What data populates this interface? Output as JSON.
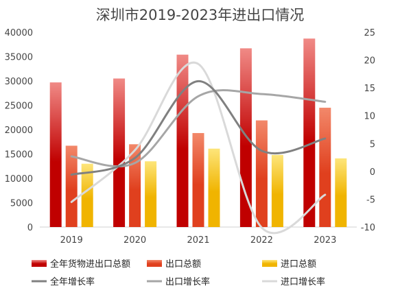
{
  "chart_data": {
    "type": "bar",
    "title": "深圳市2019-2023年进出口情况",
    "categories": [
      "2019",
      "2020",
      "2021",
      "2022",
      "2023"
    ],
    "y_left": {
      "min": 0,
      "max": 40000,
      "step": 5000
    },
    "y_right": {
      "min": -10,
      "max": 25,
      "step": 5
    },
    "grid": false,
    "legend_position": "bottom",
    "bar_series": [
      {
        "name": "全年货物进出口总额",
        "values": [
          29700,
          30500,
          35400,
          36700,
          38700
        ],
        "color_top": "#f08a86",
        "color_bottom": "#c00000"
      },
      {
        "name": "出口总额",
        "values": [
          16700,
          17000,
          19300,
          21900,
          24500
        ],
        "color_top": "#f2886a",
        "color_bottom": "#e0401e"
      },
      {
        "name": "进口总额",
        "values": [
          13000,
          13500,
          16100,
          14800,
          14100
        ],
        "color_top": "#fde57a",
        "color_bottom": "#f0b400"
      }
    ],
    "line_series": [
      {
        "name": "全年增长率",
        "values": [
          -0.6,
          2.4,
          16.2,
          3.7,
          5.9
        ],
        "color": "#808080"
      },
      {
        "name": "出口增长率",
        "values": [
          2.7,
          1.5,
          13.5,
          13.9,
          12.5
        ],
        "color": "#a6a6a6"
      },
      {
        "name": "进口增长率",
        "values": [
          -5.5,
          3.8,
          19.3,
          -10.1,
          -4.2
        ],
        "color": "#d9d9d9"
      }
    ]
  }
}
